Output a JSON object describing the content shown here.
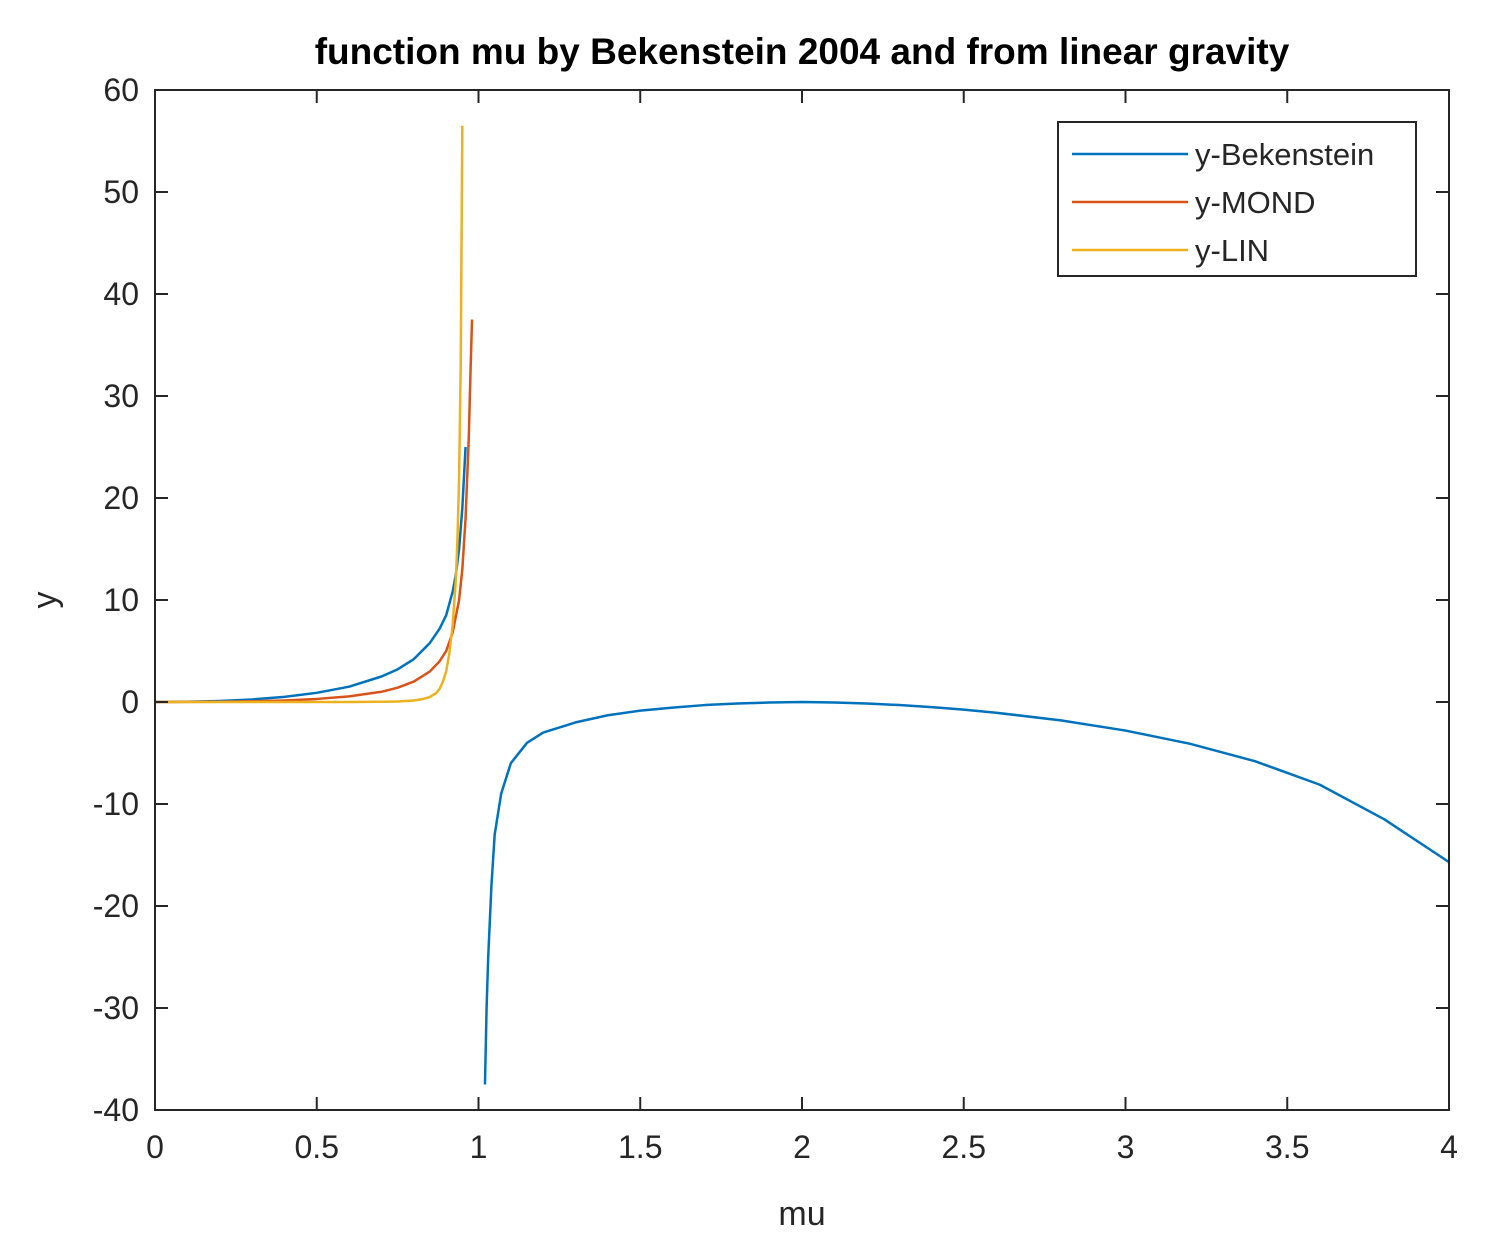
{
  "chart_data": {
    "type": "line",
    "title": "function mu by Bekenstein 2004 and from linear gravity",
    "xlabel": "mu",
    "ylabel": "y",
    "xlim": [
      0,
      4
    ],
    "ylim": [
      -40,
      60
    ],
    "xticks": [
      0,
      0.5,
      1,
      1.5,
      2,
      2.5,
      3,
      3.5,
      4
    ],
    "xtick_labels": [
      "0",
      "0.5",
      "1",
      "1.5",
      "2",
      "2.5",
      "3",
      "3.5",
      "4"
    ],
    "yticks": [
      -40,
      -30,
      -20,
      -10,
      0,
      10,
      20,
      30,
      40,
      50,
      60
    ],
    "ytick_labels": [
      "-40",
      "-30",
      "-20",
      "-10",
      "0",
      "10",
      "20",
      "30",
      "40",
      "50",
      "60"
    ],
    "grid": false,
    "legend_position": "top-right",
    "series": [
      {
        "name": "y-Bekenstein",
        "color": "#0072bd",
        "segments": [
          {
            "x": [
              0,
              0.1,
              0.2,
              0.3,
              0.4,
              0.5,
              0.6,
              0.7,
              0.75,
              0.8,
              0.85,
              0.88,
              0.9,
              0.92,
              0.93,
              0.94,
              0.95,
              0.96
            ],
            "y": [
              0,
              0.02,
              0.1,
              0.25,
              0.5,
              0.9,
              1.5,
              2.5,
              3.2,
              4.2,
              5.8,
              7.2,
              8.5,
              10.8,
              12.5,
              15,
              19,
              25
            ]
          },
          {
            "x": [
              1.02,
              1.025,
              1.03,
              1.04,
              1.05,
              1.07,
              1.1,
              1.15,
              1.2,
              1.3,
              1.4,
              1.5,
              1.6,
              1.7,
              1.8,
              1.9,
              2.0,
              2.1,
              2.2,
              2.3,
              2.4,
              2.5,
              2.6,
              2.8,
              3.0,
              3.2,
              3.4,
              3.6,
              3.8,
              4.0
            ],
            "y": [
              -37.5,
              -30,
              -25,
              -18,
              -13,
              -9,
              -6,
              -4,
              -3,
              -2,
              -1.3,
              -0.85,
              -0.55,
              -0.3,
              -0.15,
              -0.05,
              0,
              -0.05,
              -0.15,
              -0.3,
              -0.5,
              -0.75,
              -1.05,
              -1.8,
              -2.8,
              -4.1,
              -5.8,
              -8.1,
              -11.5,
              -15.7
            ]
          }
        ]
      },
      {
        "name": "y-MOND",
        "color": "#d95319",
        "segments": [
          {
            "x": [
              0,
              0.1,
              0.2,
              0.3,
              0.4,
              0.5,
              0.6,
              0.7,
              0.75,
              0.8,
              0.85,
              0.88,
              0.9,
              0.92,
              0.94,
              0.95,
              0.96,
              0.97,
              0.975,
              0.98
            ],
            "y": [
              0,
              0.01,
              0.03,
              0.07,
              0.15,
              0.3,
              0.55,
              1.0,
              1.4,
              2.0,
              3.0,
              4.0,
              5.0,
              6.8,
              10,
              13,
              18,
              26,
              32,
              37.5
            ]
          }
        ]
      },
      {
        "name": "y-LIN",
        "color": "#edb120",
        "segments": [
          {
            "x": [
              0,
              0.2,
              0.4,
              0.6,
              0.7,
              0.75,
              0.8,
              0.83,
              0.85,
              0.87,
              0.88,
              0.89,
              0.9,
              0.91,
              0.92,
              0.93,
              0.935,
              0.94,
              0.945,
              0.95
            ],
            "y": [
              0,
              0,
              0,
              0,
              0.02,
              0.05,
              0.15,
              0.3,
              0.5,
              0.9,
              1.3,
              2.0,
              3.0,
              4.8,
              7.5,
              12,
              16,
              22,
              33,
              56.5
            ]
          }
        ]
      }
    ]
  }
}
